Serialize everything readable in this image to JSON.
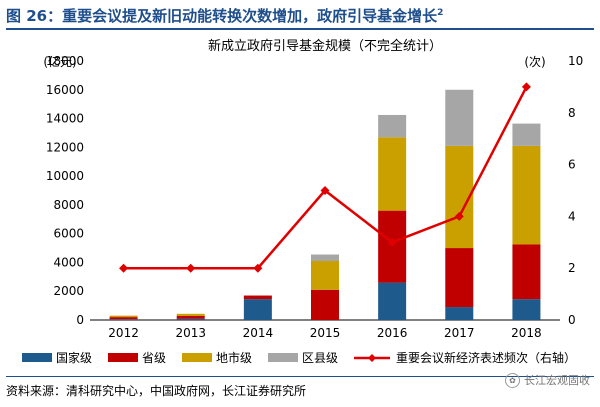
{
  "figure": {
    "label": "图 26：",
    "heading": "重要会议提及新旧动能转换次数增加，政府引导基金增长",
    "superscript": "2"
  },
  "source": "资料来源：清科研究中心，中国政府网，长江证券研究所",
  "watermark": "长江宏观固收",
  "chart_data": {
    "type": "bar",
    "stacked": true,
    "title": "新成立政府引导基金规模（不完全统计）",
    "ylabel": "(亿元)",
    "y2label": "(次)",
    "categories": [
      "2012",
      "2013",
      "2014",
      "2015",
      "2016",
      "2017",
      "2018"
    ],
    "ylim": [
      0,
      18000
    ],
    "yticks": [
      0,
      2000,
      4000,
      6000,
      8000,
      10000,
      12000,
      14000,
      16000,
      18000
    ],
    "y2lim": [
      0,
      10
    ],
    "y2ticks": [
      0,
      2,
      4,
      6,
      8,
      10
    ],
    "grid": false,
    "legend_position": "bottom",
    "series": [
      {
        "name": "国家级",
        "color": "#1f5a8c",
        "values": [
          50,
          80,
          1450,
          0,
          2600,
          900,
          1450
        ]
      },
      {
        "name": "省级",
        "color": "#c00000",
        "values": [
          150,
          200,
          250,
          2100,
          5000,
          4100,
          3800
        ]
      },
      {
        "name": "地市级",
        "color": "#c9a000",
        "values": [
          100,
          150,
          0,
          2000,
          5100,
          7100,
          6850
        ]
      },
      {
        "name": "区县级",
        "color": "#a6a6a6",
        "values": [
          0,
          0,
          0,
          450,
          1550,
          3900,
          1550
        ]
      }
    ],
    "line_series": {
      "name": "重要会议新经济表述频次（右轴）",
      "color": "#e00000",
      "axis": "right",
      "values": [
        2,
        2,
        2,
        5,
        3,
        4,
        9
      ]
    }
  }
}
